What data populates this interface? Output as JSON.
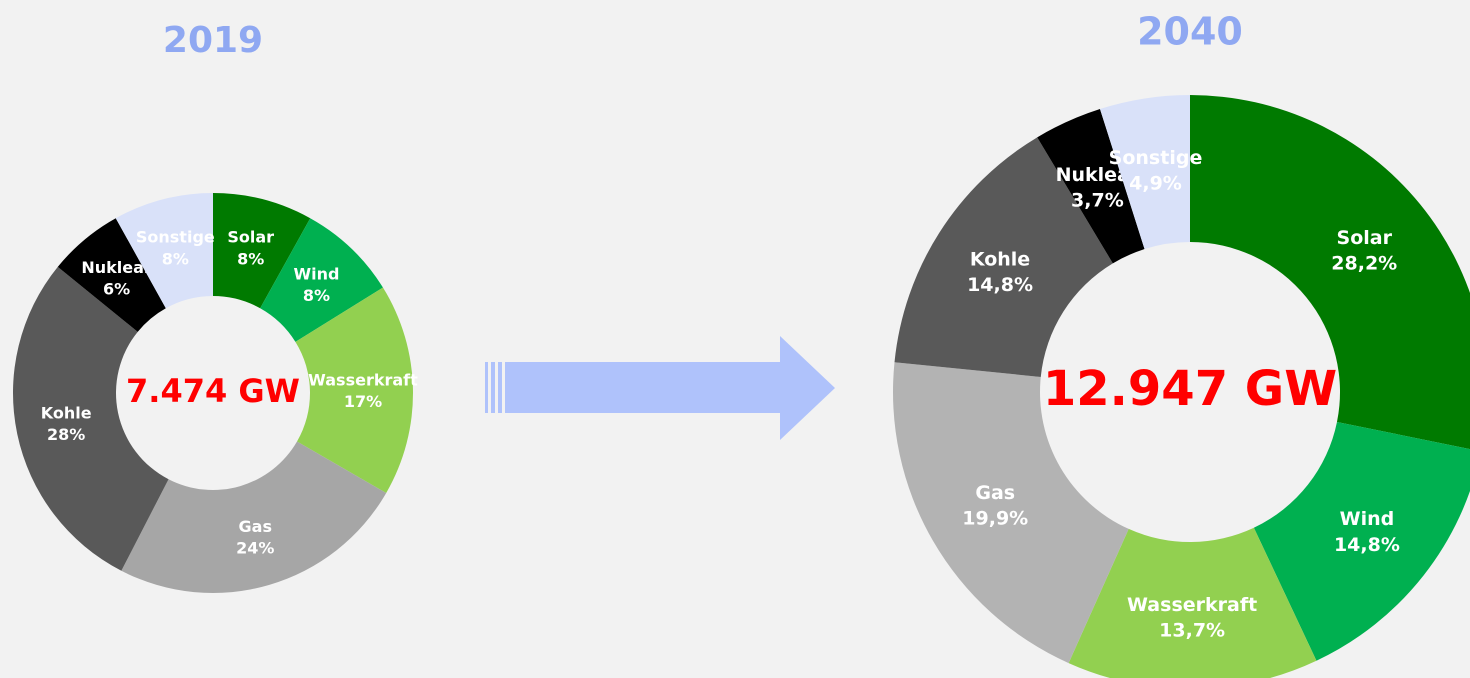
{
  "chart_data": [
    {
      "type": "pie",
      "title": "2019",
      "center_label": "7.474 GW",
      "categories": [
        "Solar",
        "Wind",
        "Wasserkraft",
        "Gas",
        "Kohle",
        "Nuklear",
        "Sonstige"
      ],
      "values": [
        8,
        8,
        17,
        24,
        28,
        6,
        8
      ],
      "value_labels": [
        "8%",
        "8%",
        "17%",
        "24%",
        "28%",
        "6%",
        "8%"
      ],
      "colors": [
        "#007a00",
        "#00b050",
        "#92d050",
        "#a6a6a6",
        "#595959",
        "#000000",
        "#d9e1f9"
      ]
    },
    {
      "type": "pie",
      "title": "2040",
      "center_label": "12.947 GW",
      "categories": [
        "Solar",
        "Wind",
        "Wasserkraft",
        "Gas",
        "Kohle",
        "Nuklear",
        "Sonstige"
      ],
      "values": [
        28.2,
        14.8,
        13.7,
        19.9,
        14.8,
        3.7,
        4.9
      ],
      "value_labels": [
        "28,2%",
        "14,8%",
        "13,7%",
        "19,9%",
        "14,8%",
        "3,7%",
        "4,9%"
      ],
      "colors": [
        "#007a00",
        "#00b050",
        "#92d050",
        "#b3b3b3",
        "#595959",
        "#000000",
        "#d9e1f9"
      ]
    }
  ]
}
